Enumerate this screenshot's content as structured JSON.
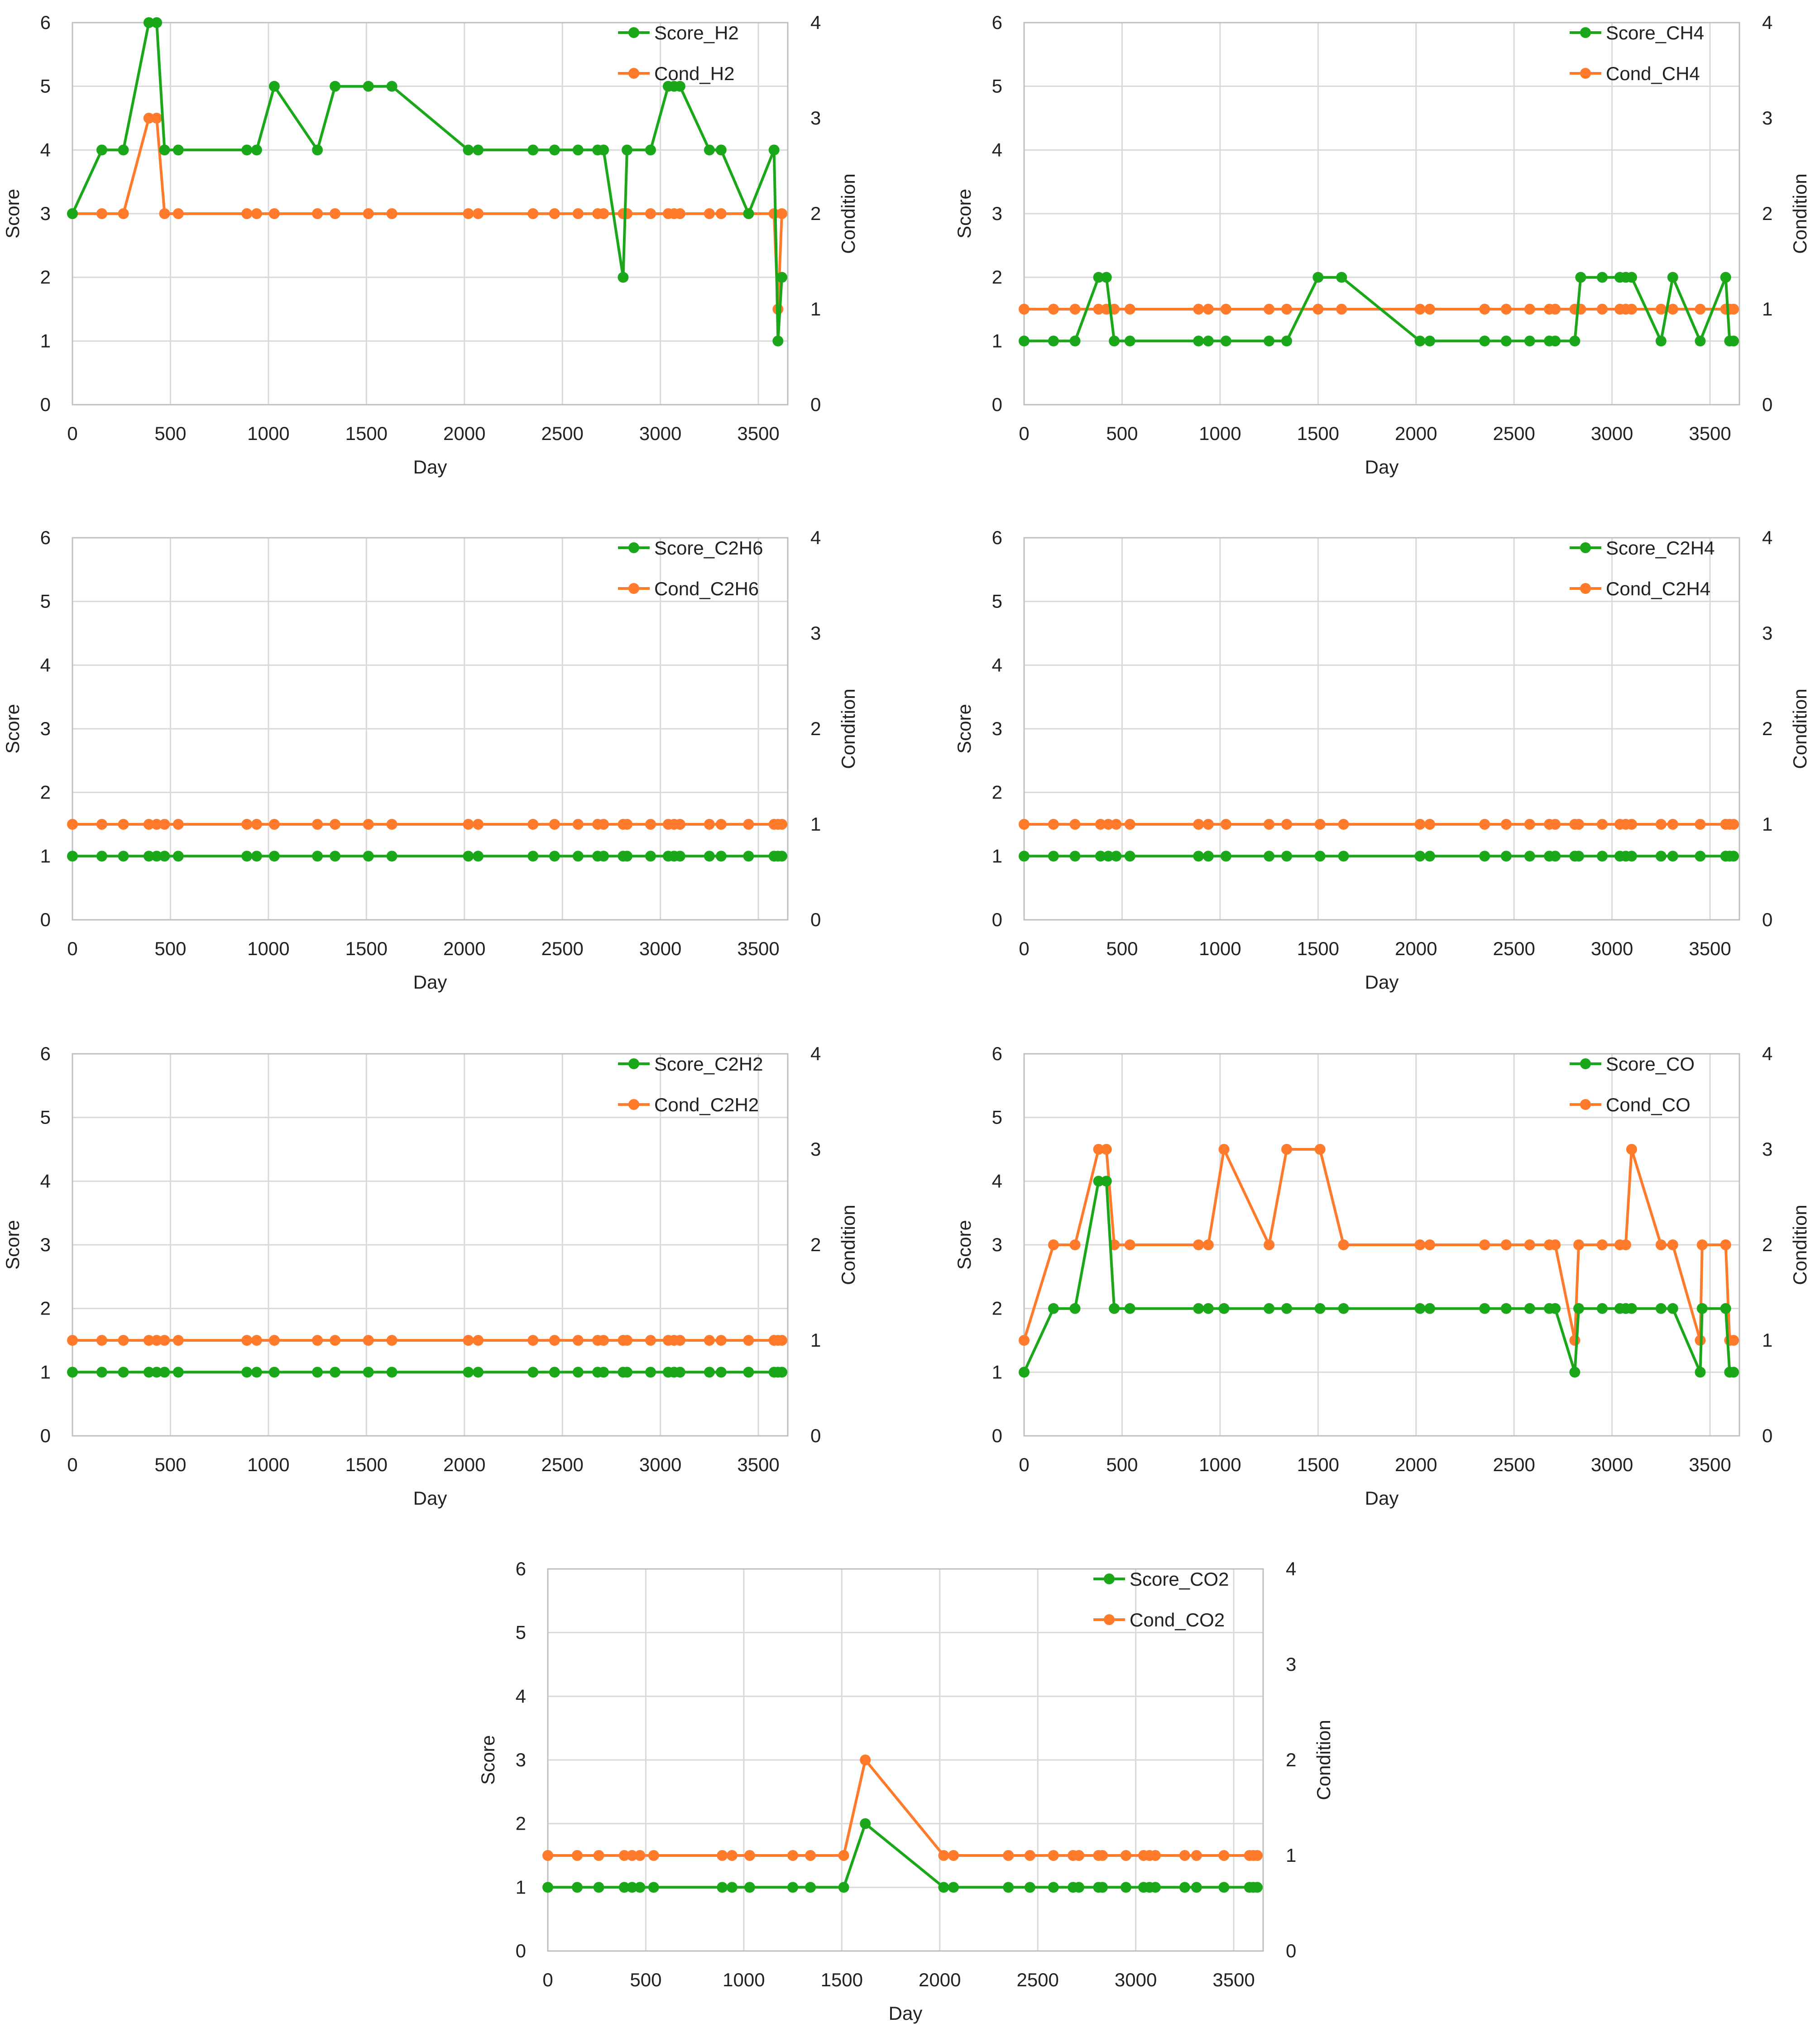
{
  "colors": {
    "score": "#1aa81a",
    "cond": "#ff7a2a",
    "grid": "#d9d9d9",
    "axis": "#bfbfbf"
  },
  "chart_data": [
    {
      "type": "line",
      "xlabel": "Day",
      "ylabel": "Score",
      "y2label": "Condition",
      "xlim": [
        0,
        3650
      ],
      "ylim": [
        0,
        6
      ],
      "y2lim": [
        0,
        4
      ],
      "xticks": [
        0,
        500,
        1000,
        1500,
        2000,
        2500,
        3000,
        3500
      ],
      "yticks": [
        0,
        1,
        2,
        3,
        4,
        5,
        6
      ],
      "y2ticks": [
        0,
        1,
        2,
        3,
        4
      ],
      "legend_position": "top-right",
      "x": [
        0,
        150,
        260,
        390,
        430,
        470,
        540,
        890,
        940,
        1030,
        1250,
        1340,
        1510,
        1630,
        2020,
        2070,
        2350,
        2460,
        2580,
        2680,
        2710,
        2810,
        2830,
        2950,
        3040,
        3070,
        3100,
        3250,
        3310,
        3450,
        3580,
        3600,
        3620
      ],
      "series": [
        {
          "name": "Score_H2",
          "axis": "y",
          "values": [
            3,
            4,
            4,
            6,
            6,
            4,
            4,
            4,
            4,
            5,
            4,
            5,
            5,
            5,
            4,
            4,
            4,
            4,
            4,
            4,
            4,
            2,
            4,
            4,
            5,
            5,
            5,
            4,
            4,
            3,
            4,
            1,
            2
          ]
        },
        {
          "name": "Cond_H2",
          "axis": "y2",
          "values": [
            2,
            2,
            2,
            3,
            3,
            2,
            2,
            2,
            2,
            2,
            2,
            2,
            2,
            2,
            2,
            2,
            2,
            2,
            2,
            2,
            2,
            2,
            2,
            2,
            2,
            2,
            2,
            2,
            2,
            2,
            2,
            1,
            2
          ]
        }
      ]
    },
    {
      "type": "line",
      "xlabel": "Day",
      "ylabel": "Score",
      "y2label": "Condition",
      "xlim": [
        0,
        3650
      ],
      "ylim": [
        0,
        6
      ],
      "y2lim": [
        0,
        4
      ],
      "xticks": [
        0,
        500,
        1000,
        1500,
        2000,
        2500,
        3000,
        3500
      ],
      "yticks": [
        0,
        1,
        2,
        3,
        4,
        5,
        6
      ],
      "y2ticks": [
        0,
        1,
        2,
        3,
        4
      ],
      "legend_position": "top-right",
      "x": [
        0,
        150,
        260,
        380,
        420,
        460,
        540,
        890,
        940,
        1030,
        1250,
        1340,
        1500,
        1620,
        2020,
        2070,
        2350,
        2460,
        2580,
        2680,
        2710,
        2810,
        2840,
        2950,
        3040,
        3070,
        3100,
        3250,
        3310,
        3450,
        3580,
        3600,
        3620
      ],
      "series": [
        {
          "name": "Score_CH4",
          "axis": "y",
          "values": [
            1,
            1,
            1,
            2,
            2,
            1,
            1,
            1,
            1,
            1,
            1,
            1,
            2,
            2,
            1,
            1,
            1,
            1,
            1,
            1,
            1,
            1,
            2,
            2,
            2,
            2,
            2,
            1,
            2,
            1,
            2,
            1,
            1
          ]
        },
        {
          "name": "Cond_CH4",
          "axis": "y2",
          "values": [
            1,
            1,
            1,
            1,
            1,
            1,
            1,
            1,
            1,
            1,
            1,
            1,
            1,
            1,
            1,
            1,
            1,
            1,
            1,
            1,
            1,
            1,
            1,
            1,
            1,
            1,
            1,
            1,
            1,
            1,
            1,
            1,
            1
          ]
        }
      ]
    },
    {
      "type": "line",
      "xlabel": "Day",
      "ylabel": "Score",
      "y2label": "Condition",
      "xlim": [
        0,
        3650
      ],
      "ylim": [
        0,
        6
      ],
      "y2lim": [
        0,
        4
      ],
      "xticks": [
        0,
        500,
        1000,
        1500,
        2000,
        2500,
        3000,
        3500
      ],
      "yticks": [
        0,
        1,
        2,
        3,
        4,
        5,
        6
      ],
      "y2ticks": [
        0,
        1,
        2,
        3,
        4
      ],
      "legend_position": "top-right",
      "x": [
        0,
        150,
        260,
        390,
        430,
        470,
        540,
        890,
        940,
        1030,
        1250,
        1340,
        1510,
        1630,
        2020,
        2070,
        2350,
        2460,
        2580,
        2680,
        2710,
        2810,
        2830,
        2950,
        3040,
        3070,
        3100,
        3250,
        3310,
        3450,
        3580,
        3600,
        3620
      ],
      "series": [
        {
          "name": "Score_C2H6",
          "axis": "y",
          "values": [
            1,
            1,
            1,
            1,
            1,
            1,
            1,
            1,
            1,
            1,
            1,
            1,
            1,
            1,
            1,
            1,
            1,
            1,
            1,
            1,
            1,
            1,
            1,
            1,
            1,
            1,
            1,
            1,
            1,
            1,
            1,
            1,
            1
          ]
        },
        {
          "name": "Cond_C2H6",
          "axis": "y2",
          "values": [
            1,
            1,
            1,
            1,
            1,
            1,
            1,
            1,
            1,
            1,
            1,
            1,
            1,
            1,
            1,
            1,
            1,
            1,
            1,
            1,
            1,
            1,
            1,
            1,
            1,
            1,
            1,
            1,
            1,
            1,
            1,
            1,
            1
          ]
        }
      ]
    },
    {
      "type": "line",
      "xlabel": "Day",
      "ylabel": "Score",
      "y2label": "Condition",
      "xlim": [
        0,
        3650
      ],
      "ylim": [
        0,
        6
      ],
      "y2lim": [
        0,
        4
      ],
      "xticks": [
        0,
        500,
        1000,
        1500,
        2000,
        2500,
        3000,
        3500
      ],
      "yticks": [
        0,
        1,
        2,
        3,
        4,
        5,
        6
      ],
      "y2ticks": [
        0,
        1,
        2,
        3,
        4
      ],
      "legend_position": "top-right",
      "x": [
        0,
        150,
        260,
        390,
        430,
        470,
        540,
        890,
        940,
        1030,
        1250,
        1340,
        1510,
        1630,
        2020,
        2070,
        2350,
        2460,
        2580,
        2680,
        2710,
        2810,
        2830,
        2950,
        3040,
        3070,
        3100,
        3250,
        3310,
        3450,
        3580,
        3600,
        3620
      ],
      "series": [
        {
          "name": "Score_C2H4",
          "axis": "y",
          "values": [
            1,
            1,
            1,
            1,
            1,
            1,
            1,
            1,
            1,
            1,
            1,
            1,
            1,
            1,
            1,
            1,
            1,
            1,
            1,
            1,
            1,
            1,
            1,
            1,
            1,
            1,
            1,
            1,
            1,
            1,
            1,
            1,
            1
          ]
        },
        {
          "name": "Cond_C2H4",
          "axis": "y2",
          "values": [
            1,
            1,
            1,
            1,
            1,
            1,
            1,
            1,
            1,
            1,
            1,
            1,
            1,
            1,
            1,
            1,
            1,
            1,
            1,
            1,
            1,
            1,
            1,
            1,
            1,
            1,
            1,
            1,
            1,
            1,
            1,
            1,
            1
          ]
        }
      ]
    },
    {
      "type": "line",
      "xlabel": "Day",
      "ylabel": "Score",
      "y2label": "Condition",
      "xlim": [
        0,
        3650
      ],
      "ylim": [
        0,
        6
      ],
      "y2lim": [
        0,
        4
      ],
      "xticks": [
        0,
        500,
        1000,
        1500,
        2000,
        2500,
        3000,
        3500
      ],
      "yticks": [
        0,
        1,
        2,
        3,
        4,
        5,
        6
      ],
      "y2ticks": [
        0,
        1,
        2,
        3,
        4
      ],
      "legend_position": "top-right",
      "x": [
        0,
        150,
        260,
        390,
        430,
        470,
        540,
        890,
        940,
        1030,
        1250,
        1340,
        1510,
        1630,
        2020,
        2070,
        2350,
        2460,
        2580,
        2680,
        2710,
        2810,
        2830,
        2950,
        3040,
        3070,
        3100,
        3250,
        3310,
        3450,
        3580,
        3600,
        3620
      ],
      "series": [
        {
          "name": "Score_C2H2",
          "axis": "y",
          "values": [
            1,
            1,
            1,
            1,
            1,
            1,
            1,
            1,
            1,
            1,
            1,
            1,
            1,
            1,
            1,
            1,
            1,
            1,
            1,
            1,
            1,
            1,
            1,
            1,
            1,
            1,
            1,
            1,
            1,
            1,
            1,
            1,
            1
          ]
        },
        {
          "name": "Cond_C2H2",
          "axis": "y2",
          "values": [
            1,
            1,
            1,
            1,
            1,
            1,
            1,
            1,
            1,
            1,
            1,
            1,
            1,
            1,
            1,
            1,
            1,
            1,
            1,
            1,
            1,
            1,
            1,
            1,
            1,
            1,
            1,
            1,
            1,
            1,
            1,
            1,
            1
          ]
        }
      ]
    },
    {
      "type": "line",
      "xlabel": "Day",
      "ylabel": "Score",
      "y2label": "Condition",
      "xlim": [
        0,
        3650
      ],
      "ylim": [
        0,
        6
      ],
      "y2lim": [
        0,
        4
      ],
      "xticks": [
        0,
        500,
        1000,
        1500,
        2000,
        2500,
        3000,
        3500
      ],
      "yticks": [
        0,
        1,
        2,
        3,
        4,
        5,
        6
      ],
      "y2ticks": [
        0,
        1,
        2,
        3,
        4
      ],
      "legend_position": "top-right",
      "x": [
        0,
        150,
        260,
        380,
        420,
        460,
        540,
        890,
        940,
        1020,
        1250,
        1340,
        1510,
        1630,
        2020,
        2070,
        2350,
        2460,
        2580,
        2680,
        2710,
        2810,
        2830,
        2950,
        3040,
        3070,
        3100,
        3250,
        3310,
        3450,
        3460,
        3580,
        3600,
        3620
      ],
      "series": [
        {
          "name": "Score_CO",
          "axis": "y",
          "values": [
            1,
            2,
            2,
            4,
            4,
            2,
            2,
            2,
            2,
            2,
            2,
            2,
            2,
            2,
            2,
            2,
            2,
            2,
            2,
            2,
            2,
            1,
            2,
            2,
            2,
            2,
            2,
            2,
            2,
            1,
            2,
            2,
            1,
            1
          ]
        },
        {
          "name": "Cond_CO",
          "axis": "y2",
          "values": [
            1,
            2,
            2,
            3,
            3,
            2,
            2,
            2,
            2,
            3,
            2,
            3,
            3,
            2,
            2,
            2,
            2,
            2,
            2,
            2,
            2,
            1,
            2,
            2,
            2,
            2,
            3,
            2,
            2,
            1,
            2,
            2,
            1,
            1
          ]
        }
      ]
    },
    {
      "type": "line",
      "xlabel": "Day",
      "ylabel": "Score",
      "y2label": "Condition",
      "xlim": [
        0,
        3650
      ],
      "ylim": [
        0,
        6
      ],
      "y2lim": [
        0,
        4
      ],
      "xticks": [
        0,
        500,
        1000,
        1500,
        2000,
        2500,
        3000,
        3500
      ],
      "yticks": [
        0,
        1,
        2,
        3,
        4,
        5,
        6
      ],
      "y2ticks": [
        0,
        1,
        2,
        3,
        4
      ],
      "legend_position": "top-right",
      "x": [
        0,
        150,
        260,
        390,
        430,
        470,
        540,
        890,
        940,
        1030,
        1250,
        1340,
        1510,
        1620,
        2020,
        2070,
        2350,
        2460,
        2580,
        2680,
        2710,
        2810,
        2830,
        2950,
        3040,
        3070,
        3100,
        3250,
        3310,
        3450,
        3580,
        3600,
        3620
      ],
      "series": [
        {
          "name": "Score_CO2",
          "axis": "y",
          "values": [
            1,
            1,
            1,
            1,
            1,
            1,
            1,
            1,
            1,
            1,
            1,
            1,
            1,
            2,
            1,
            1,
            1,
            1,
            1,
            1,
            1,
            1,
            1,
            1,
            1,
            1,
            1,
            1,
            1,
            1,
            1,
            1,
            1
          ]
        },
        {
          "name": "Cond_CO2",
          "axis": "y2",
          "values": [
            1,
            1,
            1,
            1,
            1,
            1,
            1,
            1,
            1,
            1,
            1,
            1,
            1,
            2,
            1,
            1,
            1,
            1,
            1,
            1,
            1,
            1,
            1,
            1,
            1,
            1,
            1,
            1,
            1,
            1,
            1,
            1,
            1
          ]
        }
      ]
    }
  ]
}
